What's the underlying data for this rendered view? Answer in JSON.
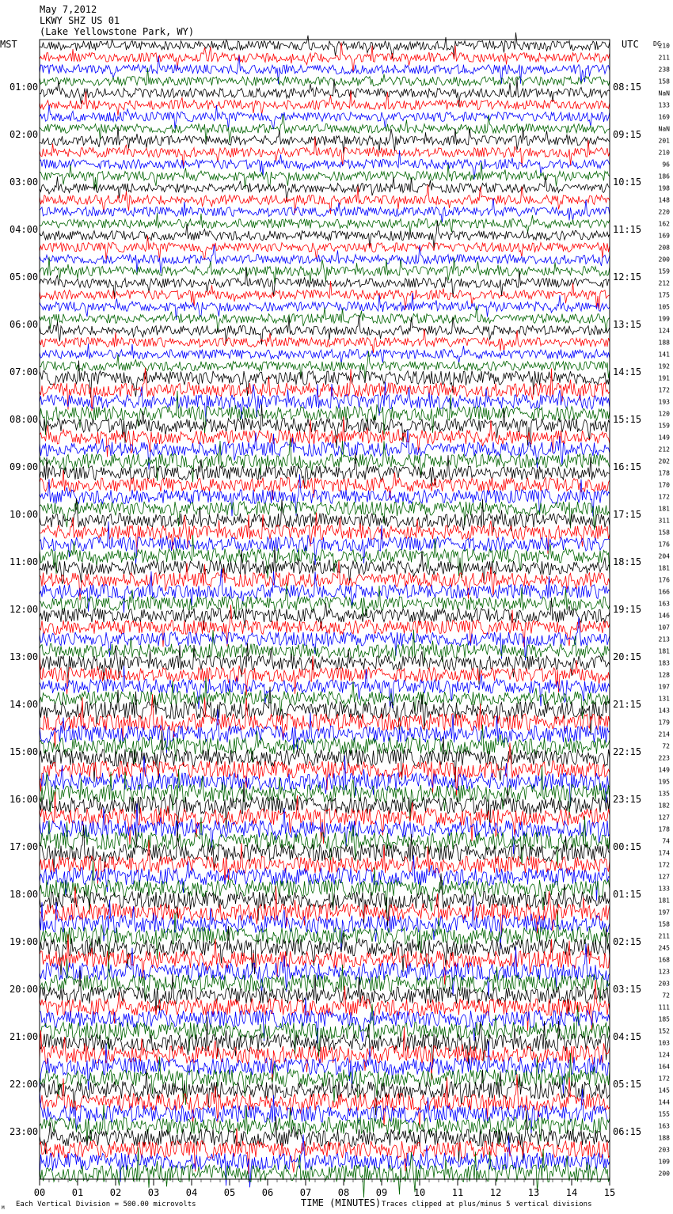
{
  "header": {
    "date": "May 7,2012",
    "station": "LKWY SHZ US 01",
    "location": "(Lake Yellowstone Park, WY)"
  },
  "axes": {
    "left_label": "MST",
    "right_label": "UTC",
    "dc_label": "DC",
    "x_title": "TIME (MINUTES)",
    "left_ticks": [
      "01:00",
      "02:00",
      "03:00",
      "04:00",
      "05:00",
      "06:00",
      "07:00",
      "08:00",
      "09:00",
      "10:00",
      "11:00",
      "12:00",
      "13:00",
      "14:00",
      "15:00",
      "16:00",
      "17:00",
      "18:00",
      "19:00",
      "20:00",
      "21:00",
      "22:00",
      "23:00"
    ],
    "right_ticks": [
      "08:15",
      "09:15",
      "10:15",
      "11:15",
      "12:15",
      "13:15",
      "14:15",
      "15:15",
      "16:15",
      "17:15",
      "18:15",
      "19:15",
      "20:15",
      "21:15",
      "22:15",
      "23:15",
      "00:15",
      "01:15",
      "02:15",
      "03:15",
      "04:15",
      "05:15",
      "06:15"
    ],
    "x_ticks": [
      "00",
      "01",
      "02",
      "03",
      "04",
      "05",
      "06",
      "07",
      "08",
      "09",
      "10",
      "11",
      "12",
      "13",
      "14",
      "15"
    ]
  },
  "footer": {
    "vertical_division": "Each Vertical Division =  500.00 microvolts",
    "clip_note": "Traces clipped at plus/minus 5 vertical divisions",
    "corner_mark": "M"
  },
  "colors": {
    "trace_cycle": [
      "#000000",
      "#ff0000",
      "#0000ff",
      "#006400"
    ],
    "frame": "#000000"
  },
  "chart_data": {
    "type": "line",
    "title": "LKWY SHZ US 01",
    "xlabel": "TIME (MINUTES)",
    "ylabel": "",
    "xlim": [
      0,
      15
    ],
    "rows": 96,
    "minutes_per_row": 15,
    "dc_offsets": [
      "210",
      "211",
      "238",
      "158",
      "NaN",
      "133",
      "169",
      "NaN",
      "201",
      "210",
      "96",
      "186",
      "198",
      "148",
      "220",
      "162",
      "169",
      "208",
      "200",
      "159",
      "212",
      "175",
      "105",
      "199",
      "124",
      "188",
      "141",
      "192",
      "191",
      "172",
      "193",
      "120",
      "159",
      "149",
      "212",
      "202",
      "178",
      "170",
      "172",
      "181",
      "311",
      "158",
      "176",
      "204",
      "181",
      "176",
      "166",
      "163",
      "146",
      "107",
      "213",
      "181",
      "183",
      "128",
      "197",
      "131",
      "143",
      "179",
      "214",
      "72",
      "223",
      "149",
      "195",
      "135",
      "182",
      "127",
      "178",
      "74",
      "174",
      "172",
      "127",
      "133",
      "181",
      "197",
      "158",
      "211",
      "245",
      "168",
      "123",
      "203",
      "72",
      "111",
      "185",
      "152",
      "103",
      "124",
      "164",
      "172",
      "145",
      "144",
      "155",
      "163",
      "188",
      "203",
      "109",
      "200"
    ]
  }
}
